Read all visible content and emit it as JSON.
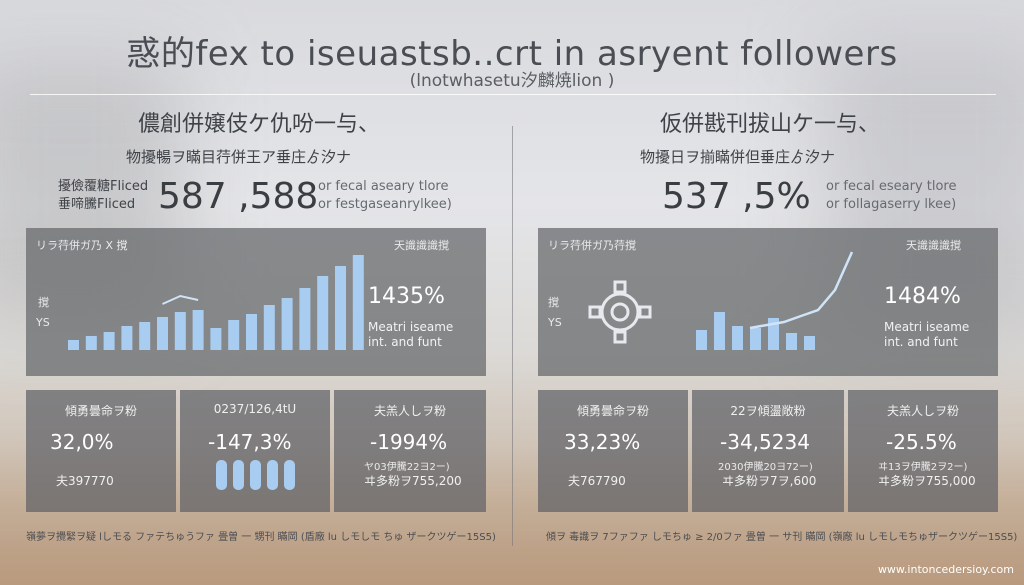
{
  "header": {
    "title": "惑的fex to iseuastsb..crt in asryent followers",
    "subtitle": "(lnotwhasetu汐麟焼lion )"
  },
  "left": {
    "section_head": "儂創併嬢伎ケ仇吩一与、",
    "section_sub": "物擾暢ヲ瞞目荇併王ア垂庄ゟ汐ナ",
    "big_label_1": "擾儉覆糖Fliced",
    "big_label_2": "垂啼騰Fliced",
    "big_value": "587 ,588",
    "big_note_1": "or fecal aseary tlore",
    "big_note_2": "or festgaseanrylkee)",
    "panel": {
      "top_left": "リラ荇併ガ乃 X 撹",
      "top_right": "天識識識撹",
      "axis_a": "撹",
      "axis_b": "YS",
      "pct": "1435%",
      "note_1": "Meatri iseame",
      "note_2": "int. and funt"
    },
    "stats": [
      {
        "label": "傾勇曇命ヲ粉",
        "value": "32,0%",
        "sub": "",
        "foot": "夫397770"
      },
      {
        "label": "0237/126,4tU",
        "value": "-147,3%",
        "sub": "",
        "foot": ""
      },
      {
        "label": "夫羔人しヲ粉",
        "value": "-1994%",
        "sub": "ヤ03伊騰22ヨ2ー)",
        "foot": "ヰ多粉ヲ755,200"
      }
    ]
  },
  "right": {
    "section_head": "仮併戡刊拔山ケ一与、",
    "section_sub": "物擾日ヲ揃瞞併但垂庄ゟ汐ナ",
    "big_value": "537 ,5%",
    "big_note_1": "or fecal eseary tlore",
    "big_note_2": "or follagaserry lkee)",
    "panel": {
      "top_left": "リラ荇併ガ乃荇撹",
      "top_right": "天識識識撹",
      "axis_a": "撹",
      "axis_b": "YS",
      "pct": "1484%",
      "note_1": "Meatri iseame",
      "note_2": "int. and funt"
    },
    "stats": [
      {
        "label": "傾勇曇命ヲ粉",
        "value": "33,23%",
        "sub": "",
        "foot": "夫767790"
      },
      {
        "label": "22ヲ傾盪敞粉",
        "value": "-34,5234",
        "sub": "2030伊騰20ヨ72ー)",
        "foot": "ヰ多粉ヲ7ヲ,600"
      },
      {
        "label": "夫羔人しヲ粉",
        "value": "-25.5%",
        "sub": "ヰ13ヲ伊騰2ヲ2ー)",
        "foot": "ヰ多粉ヲ755,000"
      }
    ]
  },
  "footer": {
    "left_text": "嶺夢ヲ攪緊ヲ疑 lしモる ファテちゅうファ  畳曽 一 甥刊 瞞岡 (盾廠 lu しモしモ ちゅ ザークツゲー15S5)",
    "right_text": "傾ヲ 毒識ヲ 7ファファ しモちゅ ≥ 2/0ファ  畳曽 一 サ刊 瞞岡 (嶺廠 lu しモしモちゅザークツゲー15S5)",
    "site": "www.intoncedersioy.com"
  },
  "chart_data": [
    {
      "type": "bar",
      "values": [
        10,
        14,
        18,
        24,
        28,
        33,
        38,
        40,
        22,
        30,
        36,
        45,
        52,
        62,
        74,
        84,
        95
      ],
      "line_overlay": [
        {
          "index": 5,
          "value": 46
        },
        {
          "index": 6,
          "value": 54
        },
        {
          "index": 7,
          "value": 50
        }
      ],
      "ylim": [
        0,
        100
      ]
    },
    {
      "type": "bar",
      "values": [
        20,
        38,
        24,
        22,
        32,
        17,
        14
      ],
      "line": [
        22,
        25,
        28,
        34,
        40,
        60,
        98
      ],
      "ylim": [
        0,
        100
      ]
    },
    {
      "type": "bar",
      "values": [
        60,
        60,
        60,
        60,
        60
      ]
    }
  ],
  "colors": {
    "bar": "#a9cdf0",
    "line": "#d0e4f7",
    "panel": "#64666a"
  }
}
